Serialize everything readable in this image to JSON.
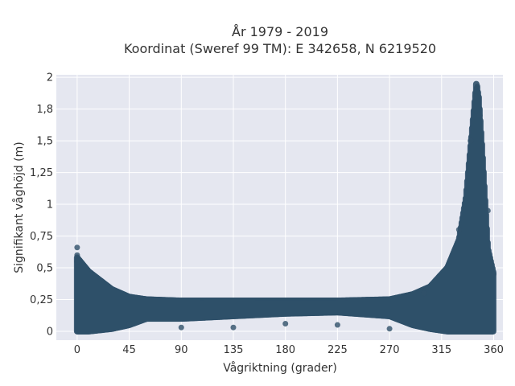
{
  "chart_data": {
    "type": "scatter",
    "title_line1": "År 1979 - 2019",
    "title_line2": "Koordinat (Sweref 99 TM): E 342658, N 6219520",
    "xlabel": "Vågriktning (grader)",
    "ylabel": "Signifikant våghöjd (m)",
    "xlim": [
      -18,
      368
    ],
    "ylim": [
      -0.07,
      2.02
    ],
    "x_ticks": [
      0,
      45,
      90,
      135,
      180,
      225,
      270,
      315,
      360
    ],
    "x_tick_labels": [
      "0",
      "45",
      "90",
      "135",
      "180",
      "225",
      "270",
      "315",
      "360"
    ],
    "y_ticks": [
      0,
      0.25,
      0.5,
      0.75,
      1,
      1.25,
      1.5,
      1.75,
      2
    ],
    "y_tick_labels": [
      "0",
      "0,25",
      "0,5",
      "0,75",
      "1",
      "1,25",
      "1,5",
      "1,8",
      "2"
    ],
    "grid": true,
    "marker_color": "#2f5069",
    "background_color": "#e5e7f0",
    "envelope": {
      "x": [
        0,
        10,
        20,
        30,
        45,
        60,
        90,
        135,
        180,
        225,
        270,
        290,
        305,
        320,
        330,
        336,
        340,
        343,
        345,
        347,
        350,
        355,
        360
      ],
      "y_max": [
        0.58,
        0.47,
        0.4,
        0.33,
        0.27,
        0.25,
        0.24,
        0.24,
        0.24,
        0.24,
        0.25,
        0.29,
        0.35,
        0.5,
        0.72,
        1.05,
        1.45,
        1.75,
        1.95,
        1.85,
        1.45,
        0.65,
        0.45
      ],
      "y_min": [
        0.0,
        0.0,
        0.01,
        0.02,
        0.05,
        0.1,
        0.1,
        0.12,
        0.14,
        0.15,
        0.12,
        0.05,
        0.02,
        0.0,
        0.0,
        0.0,
        0.0,
        0.0,
        0.0,
        0.0,
        0.0,
        0.0,
        0.0
      ]
    },
    "scatter_points": {
      "x": [
        0,
        0,
        0,
        45,
        90,
        135,
        180,
        225,
        270,
        300,
        330,
        340,
        344,
        346,
        348,
        355,
        360
      ],
      "y": [
        0.66,
        0.6,
        0.55,
        0.06,
        0.03,
        0.03,
        0.06,
        0.05,
        0.02,
        0.3,
        0.8,
        1.5,
        1.85,
        1.93,
        1.7,
        0.95,
        0.45
      ]
    }
  }
}
